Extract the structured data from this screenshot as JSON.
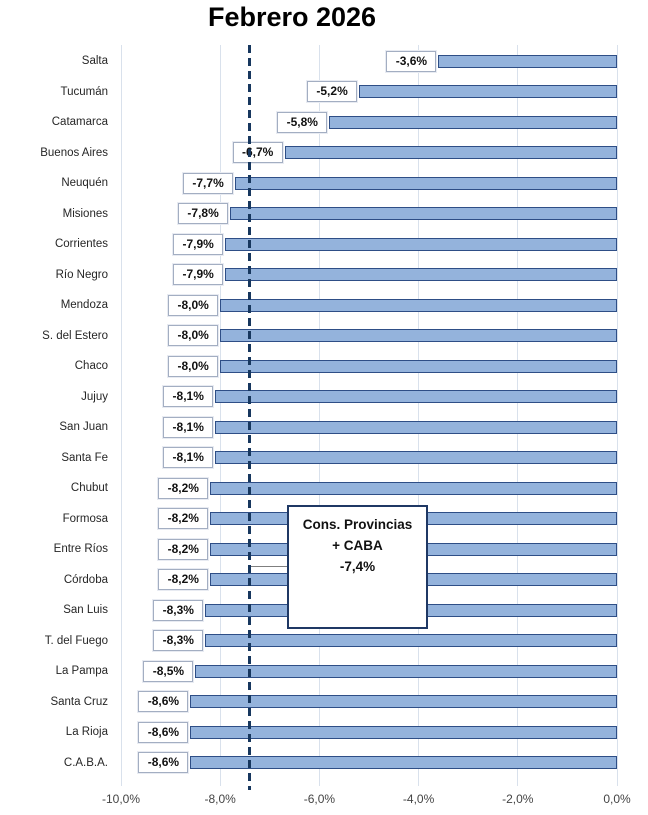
{
  "chart_data": {
    "type": "bar",
    "orientation": "horizontal",
    "title": "Febrero 2026",
    "categories": [
      "Salta",
      "Tucumán",
      "Catamarca",
      "Buenos Aires",
      "Neuquén",
      "Misiones",
      "Corrientes",
      "Río Negro",
      "Mendoza",
      "S. del Estero",
      "Chaco",
      "Jujuy",
      "San Juan",
      "Santa Fe",
      "Chubut",
      "Formosa",
      "Entre Ríos",
      "Córdoba",
      "San Luis",
      "T. del Fuego",
      "La Pampa",
      "Santa Cruz",
      "La Rioja",
      "C.A.B.A."
    ],
    "values": [
      -3.6,
      -5.2,
      -5.8,
      -6.7,
      -7.7,
      -7.8,
      -7.9,
      -7.9,
      -8.0,
      -8.0,
      -8.0,
      -8.1,
      -8.1,
      -8.1,
      -8.2,
      -8.2,
      -8.2,
      -8.2,
      -8.3,
      -8.3,
      -8.5,
      -8.6,
      -8.6,
      -8.6
    ],
    "data_labels": [
      "-3,6%",
      "-5,2%",
      "-5,8%",
      "-6,7%",
      "-7,7%",
      "-7,8%",
      "-7,9%",
      "-7,9%",
      "-8,0%",
      "-8,0%",
      "-8,0%",
      "-8,1%",
      "-8,1%",
      "-8,1%",
      "-8,2%",
      "-8,2%",
      "-8,2%",
      "-8,2%",
      "-8,3%",
      "-8,3%",
      "-8,5%",
      "-8,6%",
      "-8,6%",
      "-8,6%"
    ],
    "xlabel": "",
    "ylabel": "",
    "xlim": [
      -10,
      0
    ],
    "x_ticks": [
      {
        "value": -10,
        "label": "-10,0%"
      },
      {
        "value": -8,
        "label": "-8,0%"
      },
      {
        "value": -6,
        "label": "-6,0%"
      },
      {
        "value": -4,
        "label": "-4,0%"
      },
      {
        "value": -2,
        "label": "-2,0%"
      },
      {
        "value": 0,
        "label": "0,0%"
      }
    ],
    "grid": "vertical-only",
    "legend": "none",
    "reference_line": {
      "value": -7.4,
      "style": "dashed"
    },
    "annotation": {
      "lines": [
        "Cons. Provincias",
        "+ CABA",
        "-7,4%"
      ]
    },
    "colors": {
      "bar_fill": "#94B3DC",
      "bar_border": "#2E4E86",
      "reference_line": "#17375E",
      "gridline": "#D9E1EC",
      "value_box_border": "#A3AEC2",
      "annotation_border": "#1F3864",
      "title": "#000000"
    }
  }
}
